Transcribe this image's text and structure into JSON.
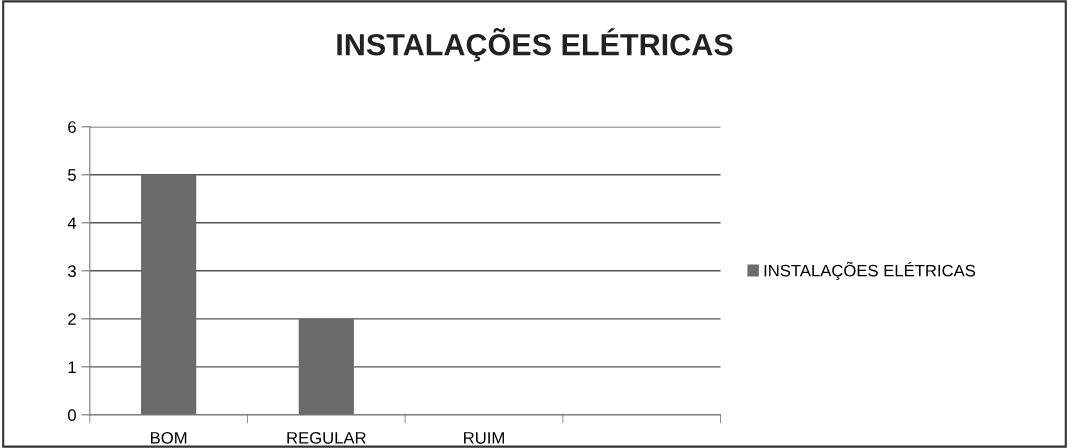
{
  "chart_data": {
    "type": "bar",
    "title": "INSTALAÇÕES ELÉTRICAS",
    "categories": [
      "BOM",
      "REGULAR",
      "RUIM",
      null
    ],
    "series": [
      {
        "name": "INSTALAÇÕES ELÉTRICAS",
        "color": "#6b6b6b",
        "values": [
          5,
          2,
          0,
          null
        ]
      }
    ],
    "ylim": [
      0,
      6
    ],
    "yticks": [
      0,
      1,
      2,
      3,
      4,
      5,
      6
    ],
    "grid": "y",
    "legend": "right"
  }
}
